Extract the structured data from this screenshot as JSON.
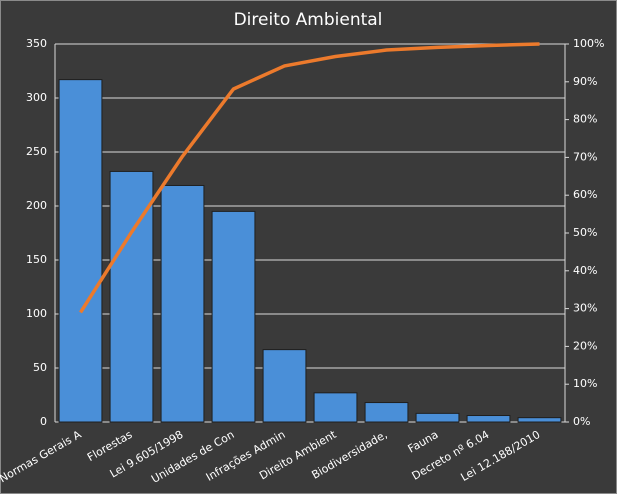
{
  "chart_data": {
    "type": "bar",
    "title": "Direito Ambiental",
    "categories": [
      "Normas Gerais A",
      "Florestas",
      "Lei 9.605/1998",
      "Unidades de Con",
      "Infrações Admin",
      "Direito Ambient",
      "Biodiversidade,",
      "Fauna",
      "Decreto nº 6.04",
      "Lei 12.188/2010"
    ],
    "series": [
      {
        "type": "bar",
        "color": "#4a8fd8",
        "values": [
          317,
          232,
          219,
          195,
          67,
          27,
          18,
          8,
          6,
          4
        ]
      },
      {
        "type": "line",
        "axis": "y2",
        "color": "#ec7a2c",
        "values": [
          29,
          50.2,
          70.3,
          88.1,
          94.2,
          96.7,
          98.4,
          99.1,
          99.6,
          100
        ]
      }
    ],
    "ylim": [
      0,
      350
    ],
    "yticks": [
      0,
      50,
      100,
      150,
      200,
      250,
      300,
      350
    ],
    "y2lim": [
      0,
      100
    ],
    "y2ticks": [
      {
        "value": 0,
        "label": "0%"
      },
      {
        "value": 10,
        "label": "10%"
      },
      {
        "value": 20,
        "label": "20%"
      },
      {
        "value": 30,
        "label": "30%"
      },
      {
        "value": 40,
        "label": "40%"
      },
      {
        "value": 50,
        "label": "50%"
      },
      {
        "value": 60,
        "label": "60%"
      },
      {
        "value": 70,
        "label": "70%"
      },
      {
        "value": 80,
        "label": "80%"
      },
      {
        "value": 90,
        "label": "90%"
      },
      {
        "value": 100,
        "label": "100%"
      }
    ],
    "grid": true
  }
}
